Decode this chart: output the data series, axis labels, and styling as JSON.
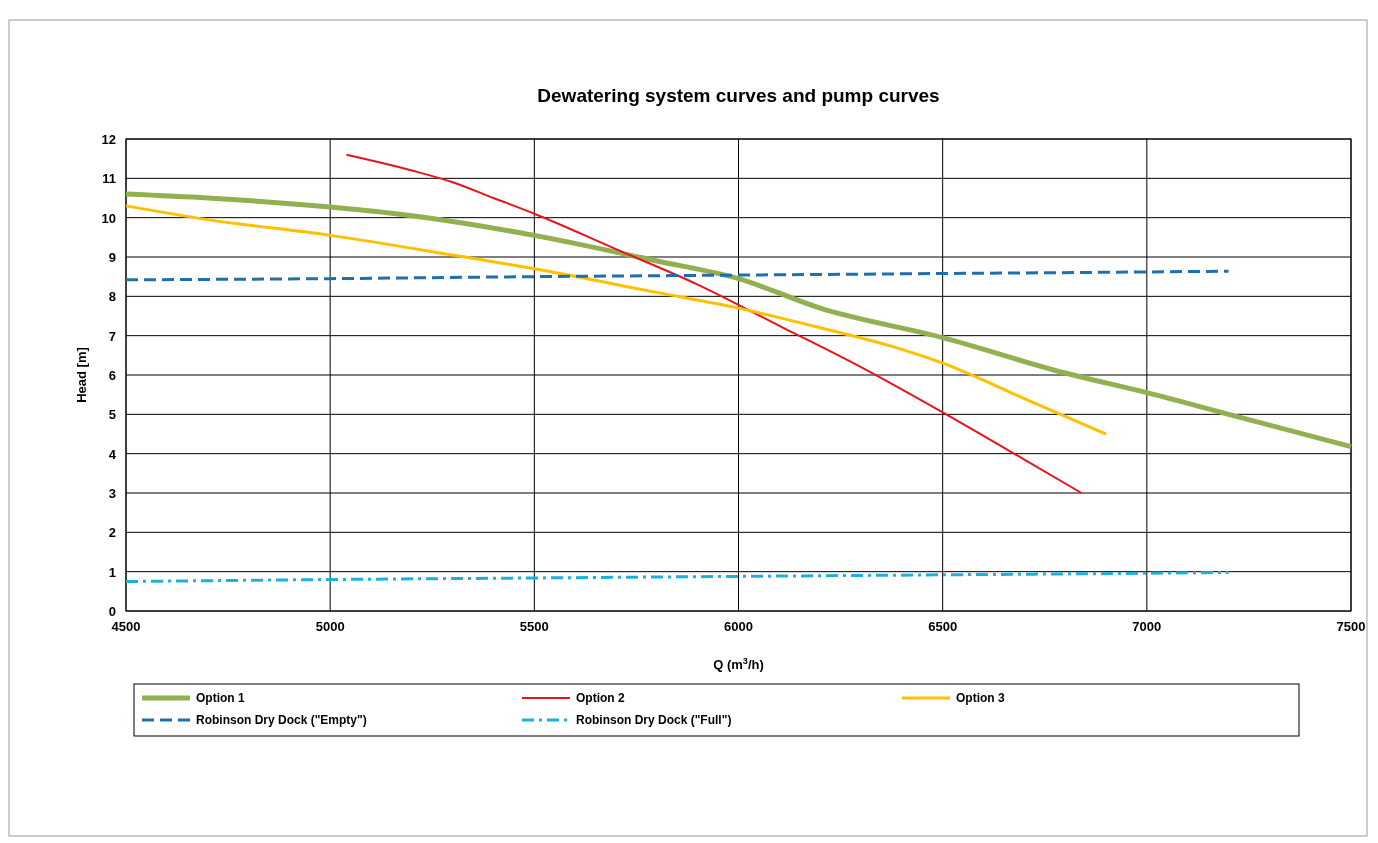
{
  "chart_data": {
    "type": "line",
    "title": "Dewatering system curves and pump curves",
    "xlabel": "Q (m$^{3}$/h)",
    "ylabel": "Head [m]",
    "xlim": [
      4500,
      7500
    ],
    "xticks": [
      4500,
      5000,
      5500,
      6000,
      6500,
      7000,
      7500
    ],
    "ylim": [
      0,
      12
    ],
    "yticks": [
      0,
      1,
      2,
      3,
      4,
      5,
      6,
      7,
      8,
      9,
      10,
      11,
      12
    ],
    "grid": true,
    "legend": "bottom",
    "marker": "none",
    "series": [
      {
        "name": "Option 1",
        "color": "#92b050",
        "line_style": "solid",
        "x": [
          4500,
          4700,
          5000,
          5200,
          5500,
          5800,
          6000,
          6200,
          6500,
          6800,
          7000,
          7200,
          7500
        ],
        "values": [
          10.6,
          10.5,
          10.27,
          10.05,
          9.55,
          8.9,
          8.45,
          7.7,
          6.95,
          6.05,
          5.55,
          5.0,
          4.18
        ]
      },
      {
        "name": "Option 2",
        "color": "#e8141c",
        "line_style": "solid",
        "x": [
          5040,
          5200,
          5300,
          5400,
          5500,
          5700,
          5900,
          6100,
          6300,
          6500,
          6700,
          6840
        ],
        "values": [
          11.6,
          11.2,
          10.9,
          10.5,
          10.1,
          9.2,
          8.3,
          7.25,
          6.2,
          5.05,
          3.85,
          3.0
        ]
      },
      {
        "name": "Option 3",
        "color": "#ffc000",
        "line_style": "solid",
        "x": [
          4500,
          4700,
          5000,
          5300,
          5500,
          5800,
          6000,
          6200,
          6400,
          6500,
          6700,
          6900
        ],
        "values": [
          10.3,
          9.95,
          9.55,
          9.05,
          8.7,
          8.1,
          7.7,
          7.2,
          6.65,
          6.3,
          5.4,
          4.5
        ]
      },
      {
        "name": "Robinson Dry Dock (\"Empty\")",
        "color": "#1f6fb0",
        "line_style": "dashed",
        "x": [
          4500,
          5000,
          5500,
          6000,
          6500,
          7000,
          7200
        ],
        "values": [
          8.42,
          8.45,
          8.5,
          8.54,
          8.58,
          8.62,
          8.64
        ]
      },
      {
        "name": "Robinson Dry Dock (\"Full\")",
        "color": "#1cb0e0",
        "line_style": "dashdot",
        "x": [
          4500,
          5000,
          5500,
          6000,
          6500,
          7000,
          7200
        ],
        "values": [
          0.75,
          0.8,
          0.84,
          0.88,
          0.92,
          0.96,
          0.98
        ]
      }
    ]
  }
}
